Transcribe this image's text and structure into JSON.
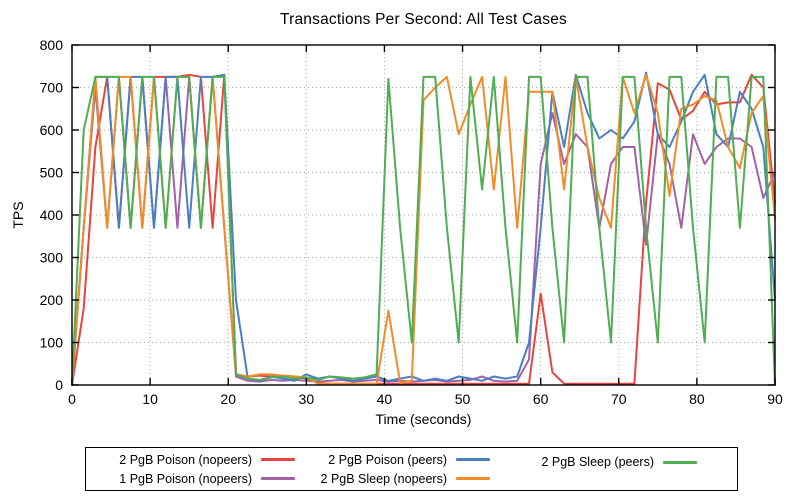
{
  "title": "Transactions Per Second: All Test Cases",
  "chart_data": {
    "type": "line",
    "title": "Transactions Per Second: All Test Cases",
    "xlabel": "Time (seconds)",
    "ylabel": "TPS",
    "xlim": [
      0,
      90
    ],
    "ylim": [
      0,
      800
    ],
    "x_ticks": [
      0,
      10,
      20,
      30,
      40,
      50,
      60,
      70,
      80,
      90
    ],
    "y_ticks": [
      0,
      100,
      200,
      300,
      400,
      500,
      600,
      700,
      800
    ],
    "grid": true,
    "grid_color": "#a8a8a8",
    "axis_color": "#000000",
    "legend_position": "bottom",
    "x": [
      0,
      1.5,
      3,
      4.5,
      6,
      7.5,
      9,
      10.5,
      12,
      13.5,
      15,
      16.5,
      18,
      19.5,
      21,
      22.5,
      24,
      25.5,
      27,
      28.5,
      30,
      31.5,
      33,
      34.5,
      36,
      37.5,
      39,
      40.5,
      42,
      43.5,
      45,
      46.5,
      48,
      49.5,
      51,
      52.5,
      54,
      55.5,
      57,
      58.5,
      60,
      61.5,
      63,
      64.5,
      66,
      67.5,
      69,
      70.5,
      72,
      73.5,
      75,
      76.5,
      78,
      79.5,
      81,
      82.5,
      84,
      85.5,
      87,
      88.5,
      90
    ],
    "series": [
      {
        "name": "2 PgB Poison (nopeers)",
        "color": "#e8433f",
        "values": [
          0,
          180,
          560,
          725,
          370,
          725,
          370,
          725,
          725,
          725,
          730,
          725,
          370,
          730,
          25,
          20,
          22,
          20,
          22,
          20,
          15,
          5,
          3,
          3,
          3,
          3,
          3,
          3,
          3,
          3,
          3,
          3,
          3,
          3,
          3,
          3,
          3,
          3,
          3,
          3,
          215,
          30,
          3,
          3,
          3,
          3,
          3,
          3,
          3,
          430,
          710,
          695,
          625,
          645,
          690,
          660,
          665,
          665,
          730,
          700,
          430
        ]
      },
      {
        "name": "1 PgB Poison (nopeers)",
        "color": "#a262a8",
        "values": [
          0,
          370,
          700,
          370,
          725,
          370,
          725,
          370,
          725,
          370,
          725,
          370,
          725,
          370,
          20,
          10,
          8,
          12,
          10,
          12,
          10,
          8,
          10,
          12,
          8,
          10,
          12,
          8,
          10,
          8,
          10,
          12,
          8,
          10,
          12,
          20,
          10,
          8,
          10,
          60,
          520,
          640,
          520,
          590,
          560,
          370,
          520,
          560,
          560,
          330,
          590,
          520,
          370,
          590,
          520,
          560,
          580,
          580,
          560,
          440,
          500
        ]
      },
      {
        "name": "2 PgB Poison (peers)",
        "color": "#4a7fc1",
        "values": [
          0,
          370,
          725,
          725,
          370,
          725,
          725,
          370,
          725,
          725,
          370,
          725,
          725,
          730,
          200,
          15,
          10,
          20,
          15,
          10,
          25,
          15,
          20,
          15,
          10,
          15,
          20,
          10,
          15,
          20,
          10,
          15,
          10,
          20,
          15,
          10,
          20,
          15,
          20,
          100,
          370,
          690,
          560,
          730,
          640,
          580,
          600,
          580,
          620,
          735,
          590,
          560,
          620,
          690,
          730,
          590,
          560,
          690,
          650,
          560,
          200
        ]
      },
      {
        "name": "2 PgB Sleep (nopeers)",
        "color": "#f18c28",
        "values": [
          0,
          370,
          725,
          370,
          725,
          725,
          370,
          725,
          370,
          725,
          725,
          370,
          725,
          370,
          25,
          20,
          25,
          25,
          22,
          20,
          18,
          3,
          3,
          3,
          3,
          3,
          3,
          175,
          5,
          10,
          670,
          700,
          725,
          590,
          660,
          725,
          460,
          725,
          370,
          690,
          690,
          690,
          460,
          725,
          560,
          440,
          370,
          725,
          640,
          730,
          640,
          445,
          650,
          660,
          680,
          670,
          560,
          510,
          640,
          680,
          390
        ]
      },
      {
        "name": "2 PgB Sleep (peers)",
        "color": "#4fad52",
        "values": [
          0,
          600,
          725,
          725,
          725,
          370,
          725,
          725,
          370,
          725,
          725,
          370,
          725,
          725,
          25,
          15,
          12,
          18,
          20,
          15,
          18,
          12,
          20,
          18,
          15,
          18,
          25,
          720,
          370,
          100,
          725,
          725,
          370,
          100,
          725,
          460,
          725,
          370,
          100,
          725,
          725,
          370,
          100,
          725,
          725,
          370,
          100,
          725,
          725,
          370,
          100,
          725,
          725,
          370,
          100,
          725,
          725,
          370,
          725,
          725,
          0
        ]
      }
    ],
    "legend_columns": [
      [
        0,
        1
      ],
      [
        2,
        3
      ],
      [
        4
      ]
    ]
  }
}
